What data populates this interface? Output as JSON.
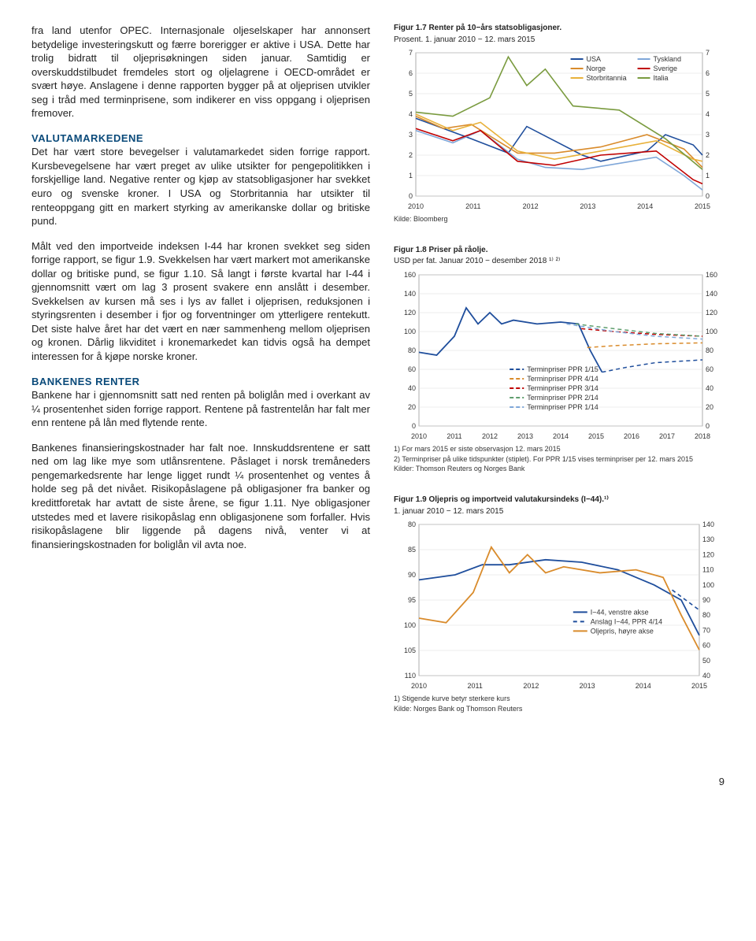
{
  "left": {
    "p1": "fra land utenfor OPEC. Internasjonale oljeselskaper har annonsert betydelige investeringskutt og færre borerigger er aktive i USA. Dette har trolig bidratt til oljeprisøkningen siden januar. Samtidig er overskuddstilbudet fremdeles stort og oljelagrene i OECD-området er svært høye. Anslagene i denne rapporten bygger på at oljeprisen utvikler seg i tråd med terminprisene, som indikerer en viss oppgang i oljeprisen fremover.",
    "h1": "VALUTAMARKEDENE",
    "p2": "Det har vært store bevegelser i valutamarkedet siden forrige rapport. Kursbevegelsene har vært preget av ulike utsikter for pengepolitikken i forskjellige land. Negative renter og kjøp av statsobligasjoner har svekket euro og svenske kroner. I USA og Storbritannia har utsikter til renteoppgang gitt en markert styrking av amerikanske dollar og britiske pund.",
    "p3": "Målt ved den importveide indeksen I-44 har kronen svekket seg siden forrige rapport, se figur 1.9. Svekkelsen har vært markert mot amerikanske dollar og britiske pund, se figur 1.10. Så langt i første kvartal har I-44 i gjennomsnitt vært om lag 3 prosent svakere enn anslått i desember. Svekkelsen av kursen må ses i lys av fallet i oljeprisen, reduksjonen i styringsrenten i desember i fjor og forventninger om ytterligere rentekutt. Det siste halve året har det vært en nær sammenheng mellom oljeprisen og kronen. Dårlig likviditet i kronemarkedet kan tidvis også ha dempet interessen for å kjøpe norske kroner.",
    "h2": "BANKENES RENTER",
    "p4": "Bankene har i gjennomsnitt satt ned renten på boliglån med i overkant av ¼ prosentenhet siden forrige rapport. Rentene på fastrentelån har falt mer enn rentene på lån med flytende rente.",
    "p5": "Bankenes finansieringskostnader har falt noe. Innskuddsrentene er satt ned om lag like mye som utlånsrentene. Påslaget i norsk tremåneders pengemarkedsrente har lenge ligget rundt ¼ prosentenhet og ventes å holde seg på det nivået. Risikopåslagene på obligasjoner fra banker og kredittforetak har avtatt de siste årene, se figur 1.11. Nye obligasjoner utstedes med et lavere risikopåslag enn obligasjonene som forfaller. Hvis risikopåslagene blir liggende på dagens nivå, venter vi at finansieringskostnaden for boliglån vil avta noe."
  },
  "pageNum": "9",
  "chart17": {
    "titleA": "Figur 1.7 Renter på 10−års statsobligasjoner.",
    "titleB": "Prosent. 1. januar 2010 − 12. mars 2015",
    "source": "Kilde: Bloomberg",
    "legend": [
      "USA",
      "Tyskland",
      "Norge",
      "Sverige",
      "Storbritannia",
      "Italia"
    ],
    "legendColors": [
      "#1f4e9c",
      "#7fa7d9",
      "#d98b2b",
      "#c00000",
      "#e8b13a",
      "#7a9b3f"
    ],
    "ymin": 0,
    "ymax": 7,
    "xticks": [
      "2010",
      "2011",
      "2012",
      "2013",
      "2014",
      "2015"
    ],
    "yticks": [
      0,
      1,
      2,
      3,
      4,
      5,
      6,
      7
    ],
    "grid_color": "#d9d9d9",
    "tick_fontsize": 9,
    "bg": "#ffffff",
    "fontsize": 10,
    "series": {
      "USA": [
        [
          0,
          3.8
        ],
        [
          6,
          3.3
        ],
        [
          12,
          2.8
        ],
        [
          20,
          2.1
        ],
        [
          24,
          3.4
        ],
        [
          36,
          2.0
        ],
        [
          40,
          1.7
        ],
        [
          50,
          2.2
        ],
        [
          54,
          3.0
        ],
        [
          60,
          2.5
        ],
        [
          62,
          2.0
        ]
      ],
      "Tyskland": [
        [
          0,
          3.2
        ],
        [
          8,
          2.6
        ],
        [
          14,
          3.2
        ],
        [
          22,
          1.8
        ],
        [
          28,
          1.4
        ],
        [
          36,
          1.3
        ],
        [
          44,
          1.6
        ],
        [
          52,
          1.9
        ],
        [
          58,
          1.0
        ],
        [
          62,
          0.3
        ]
      ],
      "Norge": [
        [
          0,
          3.9
        ],
        [
          6,
          3.3
        ],
        [
          12,
          3.5
        ],
        [
          22,
          2.1
        ],
        [
          30,
          2.1
        ],
        [
          40,
          2.4
        ],
        [
          50,
          3.0
        ],
        [
          58,
          2.3
        ],
        [
          62,
          1.4
        ]
      ],
      "Sverige": [
        [
          0,
          3.3
        ],
        [
          8,
          2.7
        ],
        [
          14,
          3.2
        ],
        [
          22,
          1.7
        ],
        [
          30,
          1.5
        ],
        [
          40,
          2.0
        ],
        [
          52,
          2.2
        ],
        [
          60,
          0.8
        ],
        [
          62,
          0.6
        ]
      ],
      "Storbritannia": [
        [
          0,
          4.0
        ],
        [
          8,
          3.2
        ],
        [
          14,
          3.6
        ],
        [
          22,
          2.2
        ],
        [
          30,
          1.8
        ],
        [
          40,
          2.2
        ],
        [
          52,
          2.7
        ],
        [
          60,
          1.8
        ],
        [
          62,
          1.7
        ]
      ],
      "Italia": [
        [
          0,
          4.1
        ],
        [
          8,
          3.9
        ],
        [
          16,
          4.8
        ],
        [
          20,
          6.8
        ],
        [
          24,
          5.4
        ],
        [
          28,
          6.2
        ],
        [
          34,
          4.4
        ],
        [
          44,
          4.2
        ],
        [
          54,
          2.8
        ],
        [
          62,
          1.3
        ]
      ]
    }
  },
  "chart18": {
    "titleA": "Figur 1.8 Priser på råolje.",
    "titleB": "USD per fat. Januar 2010 − desember 2018 ¹⁾ ²⁾",
    "source": "Kilder: Thomson Reuters og Norges Bank",
    "note1": "1) For mars 2015 er siste observasjon 12. mars 2015",
    "note2": "2) Terminpriser på ulike tidspunkter (stiplet). For PPR 1/15 vises terminpriser per 12. mars 2015",
    "legend": [
      "Terminpriser PPR 1/15",
      "Terminpriser PPR 4/14",
      "Terminpriser PPR 3/14",
      "Terminpriser PPR 2/14",
      "Terminpriser PPR 1/14"
    ],
    "legendColors": [
      "#1f4e9c",
      "#d98b2b",
      "#c00000",
      "#5f9e6e",
      "#7fa7d9"
    ],
    "ymin": 0,
    "ymax": 160,
    "xticks": [
      "2010",
      "2011",
      "2012",
      "2013",
      "2014",
      "2015",
      "2016",
      "2017",
      "2018"
    ],
    "yticks": [
      0,
      20,
      40,
      60,
      80,
      100,
      120,
      140,
      160
    ],
    "grid_color": "#d9d9d9",
    "tick_fontsize": 9,
    "bg": "#ffffff",
    "fontsize": 10,
    "spot": [
      [
        0,
        78
      ],
      [
        6,
        75
      ],
      [
        12,
        95
      ],
      [
        16,
        125
      ],
      [
        20,
        108
      ],
      [
        24,
        120
      ],
      [
        28,
        108
      ],
      [
        32,
        112
      ],
      [
        40,
        108
      ],
      [
        48,
        110
      ],
      [
        54,
        108
      ],
      [
        58,
        80
      ],
      [
        62,
        57
      ]
    ],
    "terms": {
      "1/15": [
        [
          62,
          57
        ],
        [
          70,
          62
        ],
        [
          80,
          67
        ],
        [
          96,
          70
        ]
      ],
      "4/14": [
        [
          57,
          83
        ],
        [
          66,
          85
        ],
        [
          80,
          87
        ],
        [
          96,
          88
        ]
      ],
      "3/14": [
        [
          55,
          103
        ],
        [
          66,
          100
        ],
        [
          80,
          97
        ],
        [
          96,
          95
        ]
      ],
      "2/14": [
        [
          53,
          108
        ],
        [
          66,
          103
        ],
        [
          80,
          98
        ],
        [
          96,
          95
        ]
      ],
      "1/14": [
        [
          50,
          108
        ],
        [
          66,
          100
        ],
        [
          80,
          95
        ],
        [
          96,
          92
        ]
      ]
    }
  },
  "chart19": {
    "titleA": "Figur 1.9 Oljepris og importveid valutakursindeks (I−44).¹⁾",
    "titleB": "1. januar 2010 − 12. mars 2015",
    "source": "Kilde: Norges Bank og Thomson Reuters",
    "note1": "1) Stigende kurve betyr sterkere kurs",
    "legend": [
      "I−44, venstre akse",
      "Anslag I−44, PPR 4/14",
      "Oljepris, høyre akse"
    ],
    "legendColors": [
      "#1f4e9c",
      "#1f4e9c",
      "#d98b2b"
    ],
    "legendDash": [
      "solid",
      "dashed",
      "solid"
    ],
    "ylmin": 80,
    "ylmax": 110,
    "yrmin": 40,
    "yrmax": 140,
    "xticks": [
      "2010",
      "2011",
      "2012",
      "2013",
      "2014",
      "2015"
    ],
    "ylticks": [
      80,
      85,
      90,
      95,
      100,
      105,
      110
    ],
    "yrticks": [
      140,
      130,
      120,
      110,
      100,
      90,
      80,
      70,
      60,
      50,
      40
    ],
    "grid_color": "#d9d9d9",
    "tick_fontsize": 9,
    "bg": "#ffffff",
    "fontsize": 10,
    "i44": [
      [
        0,
        91
      ],
      [
        8,
        90
      ],
      [
        14,
        88
      ],
      [
        20,
        88
      ],
      [
        28,
        87
      ],
      [
        36,
        87.5
      ],
      [
        44,
        89
      ],
      [
        52,
        92
      ],
      [
        58,
        95
      ],
      [
        62,
        102
      ]
    ],
    "anslag": [
      [
        56,
        93
      ],
      [
        59,
        95
      ],
      [
        62,
        97
      ]
    ],
    "olje": [
      [
        0,
        78
      ],
      [
        6,
        75
      ],
      [
        12,
        95
      ],
      [
        16,
        125
      ],
      [
        20,
        108
      ],
      [
        24,
        120
      ],
      [
        28,
        108
      ],
      [
        32,
        112
      ],
      [
        40,
        108
      ],
      [
        48,
        110
      ],
      [
        54,
        105
      ],
      [
        58,
        80
      ],
      [
        62,
        57
      ]
    ]
  }
}
